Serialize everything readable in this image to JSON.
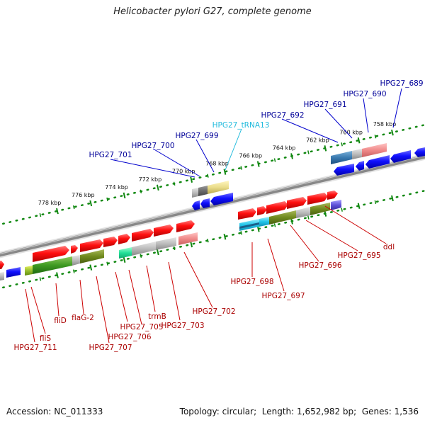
{
  "title": "Helicobacter pylori G27, complete genome",
  "footer": {
    "accession_label": "Accession:",
    "accession": "NC_011333",
    "topology_label": "Topology:",
    "topology": "circular",
    "length_label": "Length:",
    "length": "1,652,982 bp",
    "genes_label": "Genes:",
    "genes": "1,536"
  },
  "ruler": {
    "ticks": [
      "758 kbp",
      "760 kbp",
      "762 kbp",
      "764 kbp",
      "766 kbp",
      "768 kbp",
      "770 kbp",
      "772 kbp",
      "774 kbp",
      "776 kbp",
      "778 kbp"
    ]
  },
  "colors": {
    "forward_strand": "#ff0000",
    "reverse_strand": "#0000ff",
    "forward_label": "#aa0000",
    "reverse_label": "#000099",
    "trna_label": "#22bbdd",
    "backbone": "#888888",
    "ruler": "#118811"
  },
  "labels_top": [
    {
      "text": "HPG27_689",
      "kind": "gene"
    },
    {
      "text": "HPG27_690",
      "kind": "gene"
    },
    {
      "text": "HPG27_691",
      "kind": "gene"
    },
    {
      "text": "HPG27_692",
      "kind": "gene"
    },
    {
      "text": "HPG27_tRNA13",
      "kind": "trna"
    },
    {
      "text": "HPG27_699",
      "kind": "gene"
    },
    {
      "text": "HPG27_700",
      "kind": "gene"
    },
    {
      "text": "HPG27_701",
      "kind": "gene"
    }
  ],
  "labels_bottom": [
    {
      "text": "ddl"
    },
    {
      "text": "HPG27_695"
    },
    {
      "text": "HPG27_696"
    },
    {
      "text": "HPG27_697"
    },
    {
      "text": "HPG27_698"
    },
    {
      "text": "HPG27_702"
    },
    {
      "text": "HPG27_703"
    },
    {
      "text": "trmB"
    },
    {
      "text": "HPG27_705"
    },
    {
      "text": "HPG27_706"
    },
    {
      "text": "HPG27_707"
    },
    {
      "text": "flaG-2"
    },
    {
      "text": "fliD"
    },
    {
      "text": "fliS"
    },
    {
      "text": "HPG27_711"
    }
  ]
}
